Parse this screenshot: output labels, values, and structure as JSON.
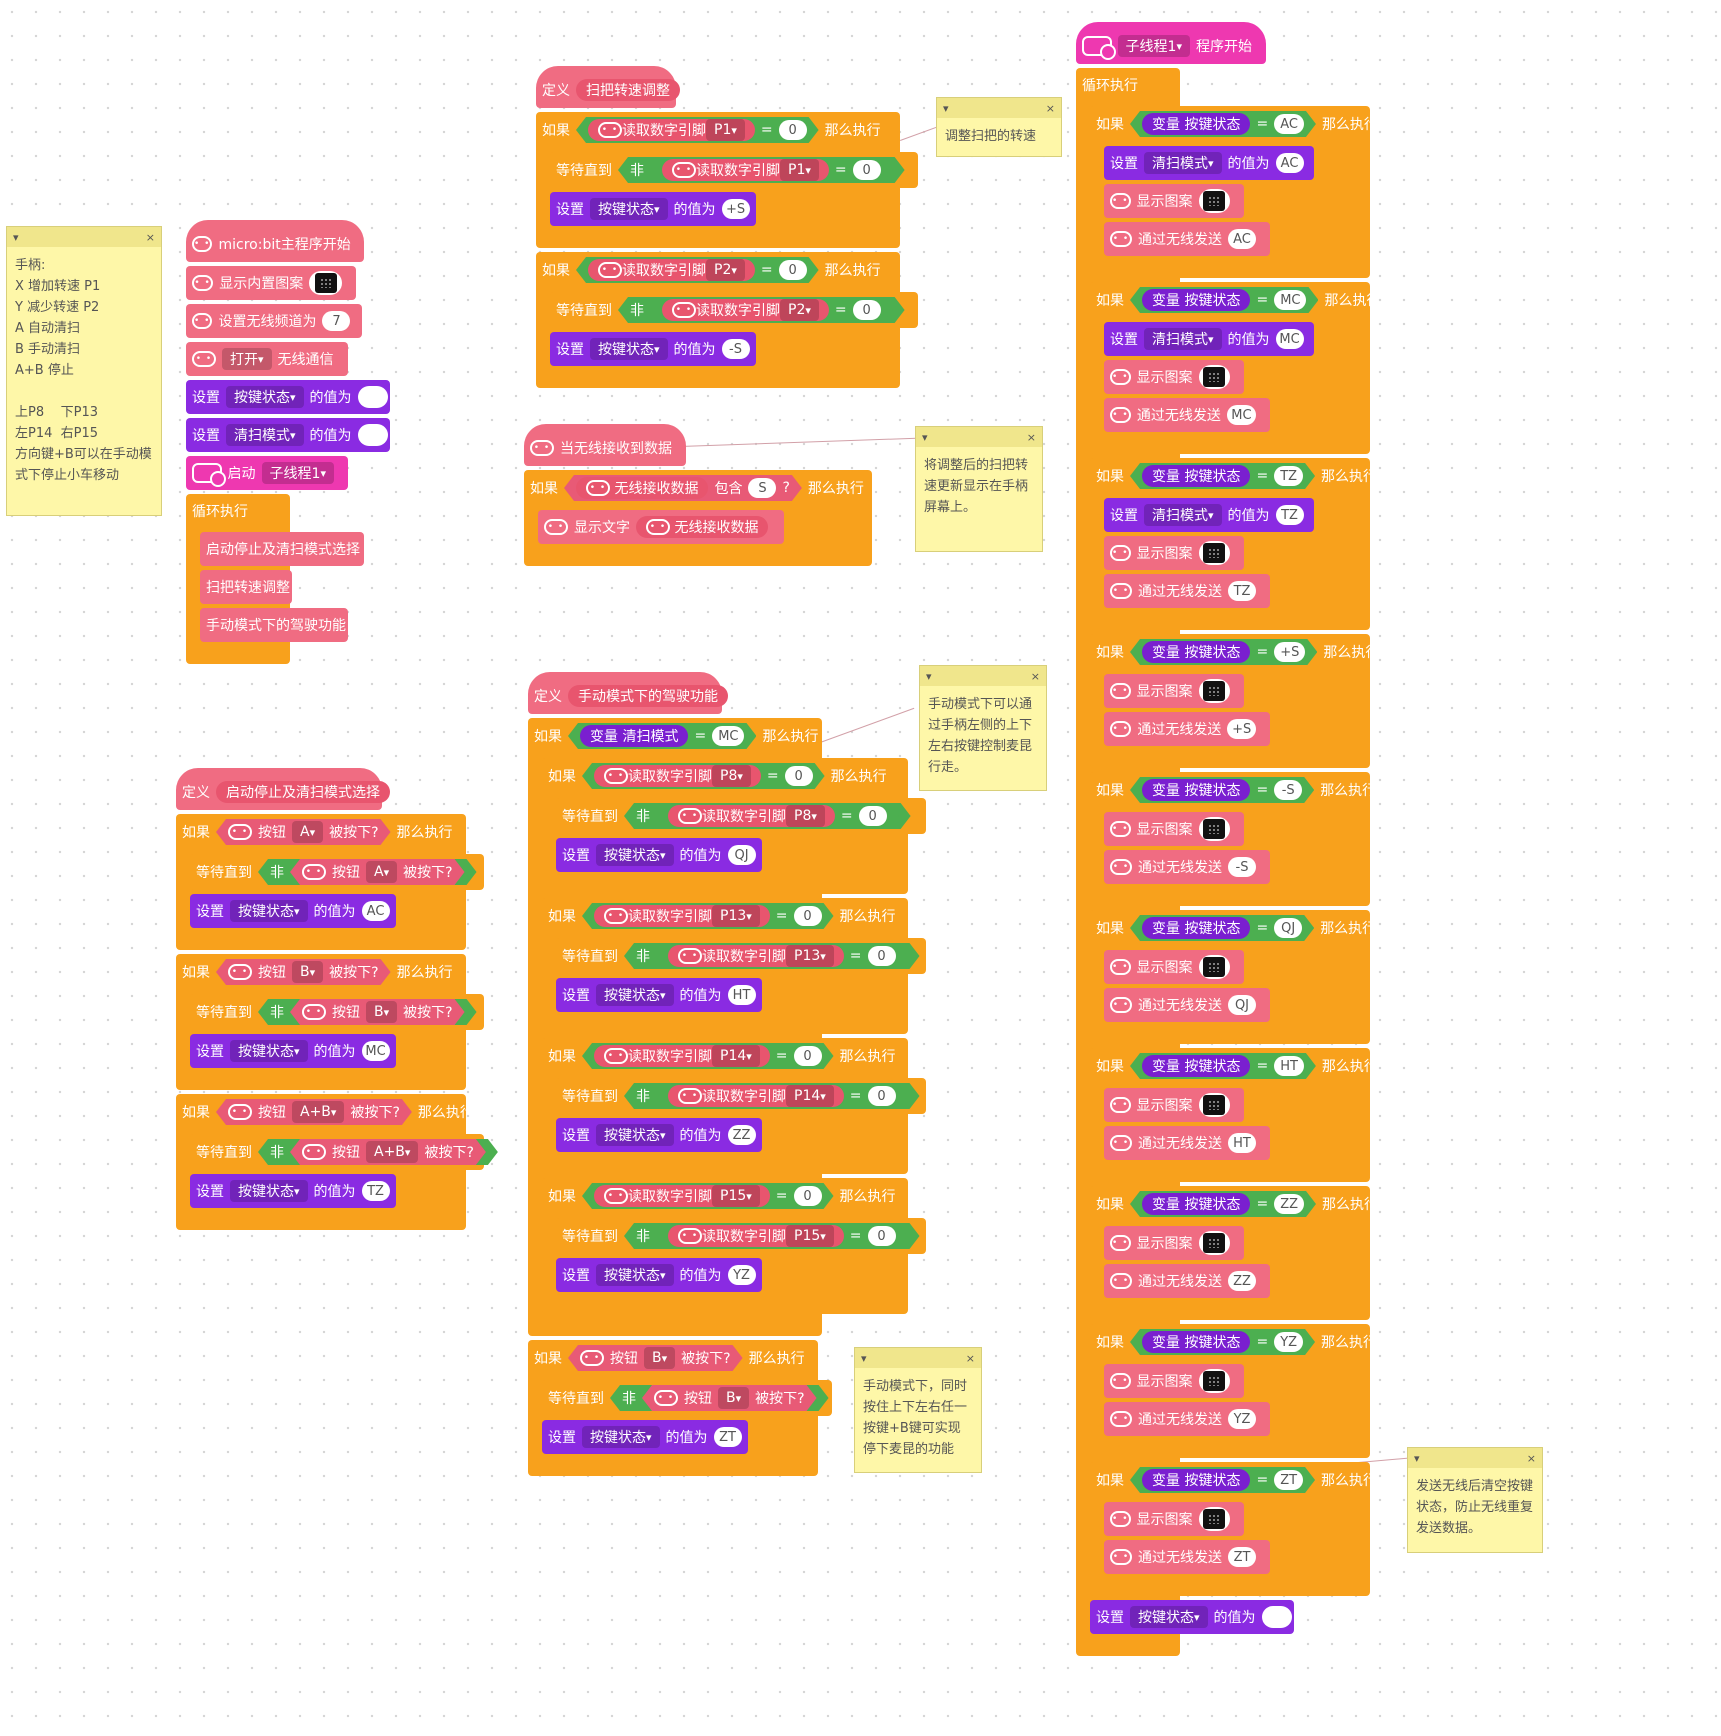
{
  "ui": {
    "icons": {
      "note_collapse": "▾",
      "note_close": "×",
      "dropdown": "▾"
    },
    "colors": {
      "event": "#f06c82",
      "control": "#f8a11c",
      "variable": "#8a2be2",
      "logic": "#5cb85c",
      "thread": "#ee38b0",
      "note": "#fef7a8"
    }
  },
  "notes": {
    "controls": "手柄:\nX 增加转速 P1\nY 减少转速 P2\nA 自动清扫\nB 手动清扫\nA+B 停止\n\n上P8    下P13\n左P14  右P15\n方向键+B可以在手动模式下停止小车移动",
    "speed_adjust": "调整扫把的转速",
    "radio_show": "将调整后的扫把转速更新显示在手柄屏幕上。",
    "manual_drive": "手动模式下可以通过手柄左侧的上下左右按键控制麦昆行走。",
    "manual_stop": "手动模式下，同时按住上下左右任一按键+B键可实现停下麦昆的功能",
    "clear_state": "发送无线后清空按键状态，防止无线重复发送数据。"
  },
  "main": {
    "hat": "micro:bit主程序开始",
    "show_builtin": "显示内置图案",
    "set_channel": "设置无线频道为",
    "channel": "7",
    "open": "打开",
    "radio": "无线通信",
    "set": "设置",
    "var_key": "按键状态",
    "var_mode": "清扫模式",
    "value_of": "的值为",
    "start": "启动",
    "thread1": "子线程1",
    "loop": "循环执行",
    "call1": "启动停止及清扫模式选择",
    "call2": "扫把转速调整",
    "call3": "手动模式下的驾驶功能"
  },
  "labels": {
    "define": "定义",
    "if": "如果",
    "then": "那么执行",
    "wait_until": "等待直到",
    "not": "非",
    "read_digital": "读取数字引脚",
    "button": "按钮",
    "pressed": "被按下?",
    "eq": "=",
    "zero": "0",
    "variable": "变量",
    "show_pattern": "显示图案",
    "radio_send": "通过无线发送",
    "show_text": "显示文字",
    "radio_data": "无线接收数据",
    "contains": "包含",
    "q": "?",
    "on_radio": "当无线接收到数据",
    "thread_start": "程序开始"
  },
  "speed": {
    "name": "扫把转速调整",
    "rows": [
      {
        "pin": "P1",
        "value": "+S"
      },
      {
        "pin": "P2",
        "value": "-S"
      }
    ]
  },
  "radio_block": {
    "letter": "S"
  },
  "mode_select": {
    "name": "启动停止及清扫模式选择",
    "rows": [
      {
        "btn": "A",
        "value": "AC"
      },
      {
        "btn": "B",
        "value": "MC"
      },
      {
        "btn": "A+B",
        "value": "TZ"
      }
    ]
  },
  "manual": {
    "name": "手动模式下的驾驶功能",
    "mode_var": "清扫模式",
    "mode_val": "MC",
    "rows": [
      {
        "pin": "P8",
        "value": "QJ"
      },
      {
        "pin": "P13",
        "value": "HT"
      },
      {
        "pin": "P14",
        "value": "ZZ"
      },
      {
        "pin": "P15",
        "value": "YZ"
      }
    ],
    "stop_btn": "B",
    "stop_value": "ZT"
  },
  "thread": {
    "name": "子线程1",
    "rows": [
      {
        "value": "AC",
        "mode": "AC"
      },
      {
        "value": "MC",
        "mode": "MC"
      },
      {
        "value": "TZ",
        "mode": "TZ"
      },
      {
        "value": "+S"
      },
      {
        "value": "-S"
      },
      {
        "value": "QJ"
      },
      {
        "value": "HT"
      },
      {
        "value": "ZZ"
      },
      {
        "value": "YZ"
      },
      {
        "value": "ZT"
      }
    ]
  }
}
